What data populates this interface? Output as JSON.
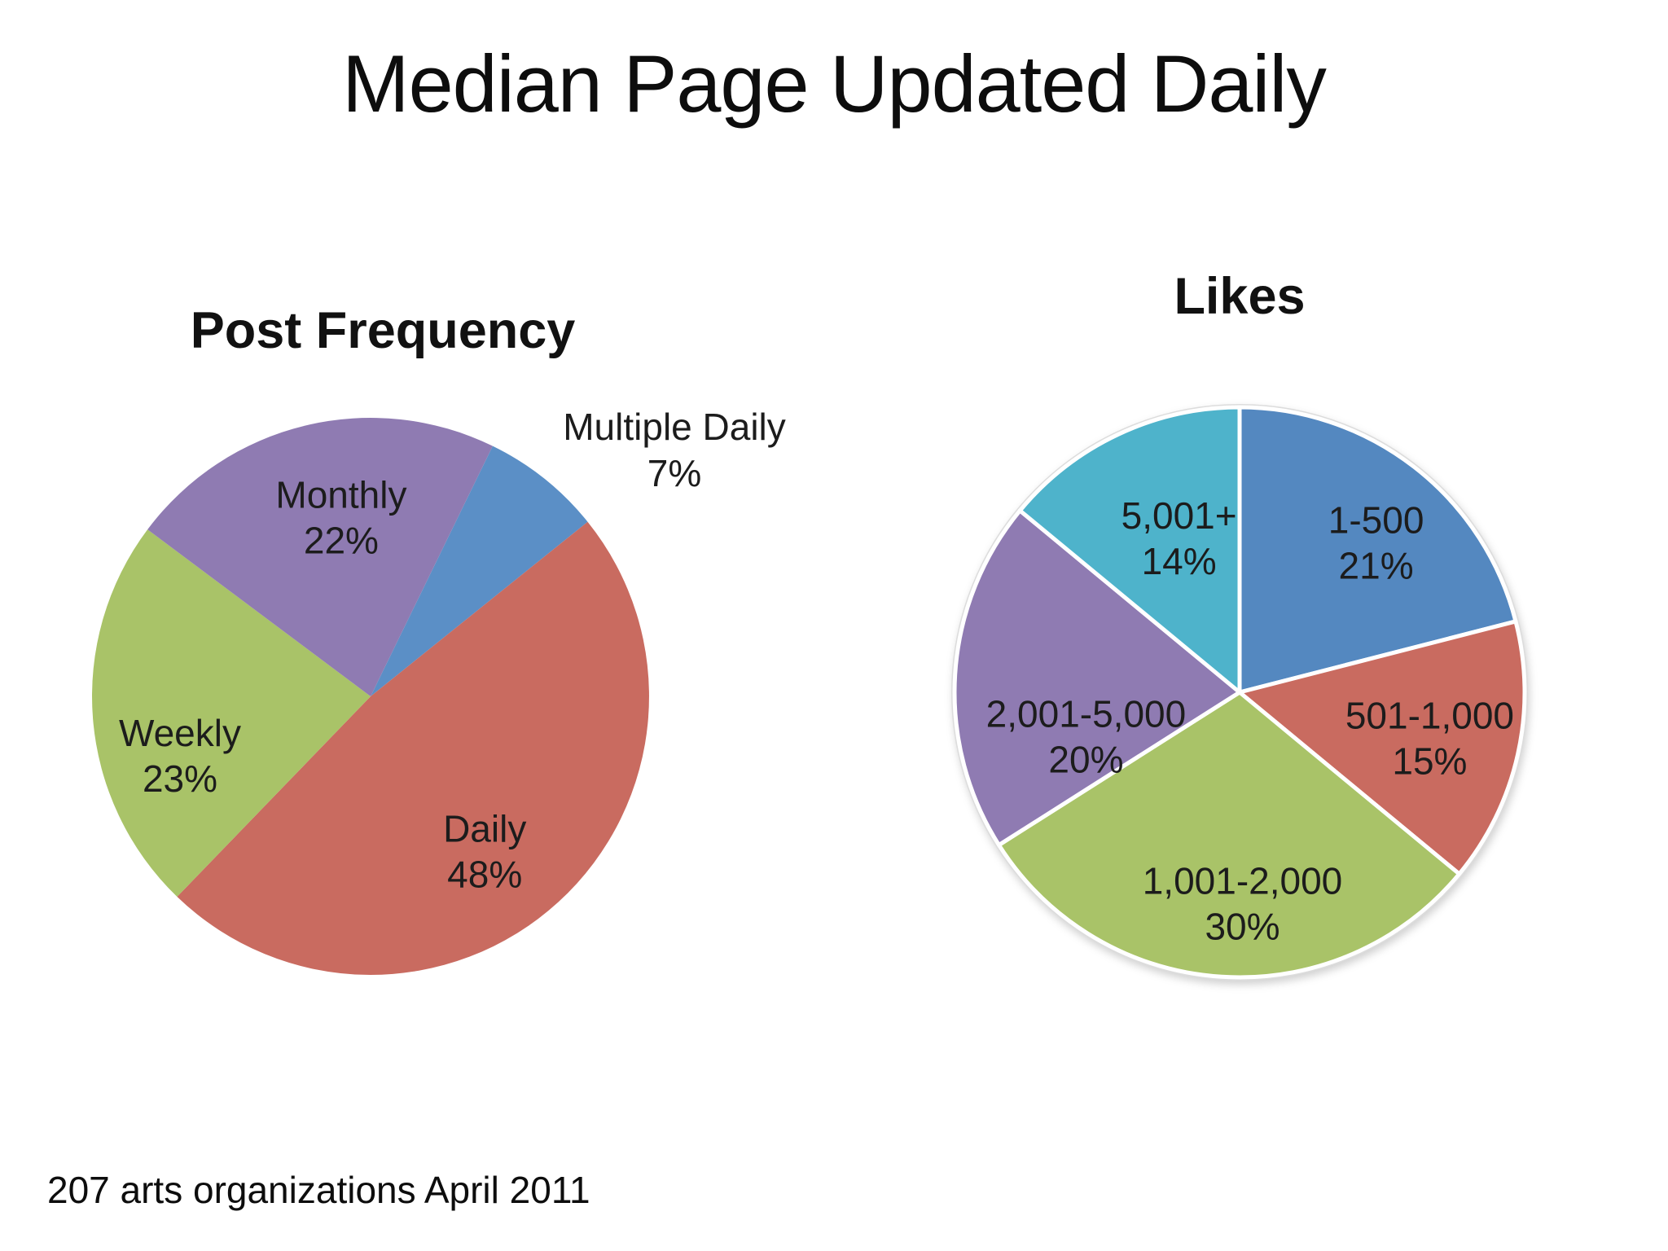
{
  "slide": {
    "title": "Median Page Updated Daily",
    "footer": "207 arts organizations April 2011"
  },
  "chart_data": [
    {
      "type": "pie",
      "title": "Post Frequency",
      "start_angle_deg": 26,
      "legend_position": "none",
      "labels_inside": true,
      "slices": [
        {
          "label": "Multiple Daily",
          "pct": 7,
          "value_text": "7%",
          "color": "#5b8fc6",
          "label_outside": true
        },
        {
          "label": "Daily",
          "pct": 48,
          "value_text": "48%",
          "color": "#c96b60"
        },
        {
          "label": "Weekly",
          "pct": 23,
          "value_text": "23%",
          "color": "#a9c368"
        },
        {
          "label": "Monthly",
          "pct": 22,
          "value_text": "22%",
          "color": "#8f7bb2"
        }
      ]
    },
    {
      "type": "pie",
      "title": "Likes",
      "start_angle_deg": 0,
      "legend_position": "none",
      "labels_inside": true,
      "slice_border_color": "#ffffff",
      "outer_ring_color": "#dcdcdc",
      "slices": [
        {
          "label": "1-500",
          "pct": 21,
          "value_text": "21%",
          "color": "#5488c0"
        },
        {
          "label": "501-1,000",
          "pct": 15,
          "value_text": "15%",
          "color": "#c96b60"
        },
        {
          "label": "1,001-2,000",
          "pct": 30,
          "value_text": "30%",
          "color": "#a9c368"
        },
        {
          "label": "2,001-5,000",
          "pct": 20,
          "value_text": "20%",
          "color": "#8f7bb2"
        },
        {
          "label": "5,001+",
          "pct": 14,
          "value_text": "14%",
          "color": "#4eb3cb"
        }
      ]
    }
  ]
}
